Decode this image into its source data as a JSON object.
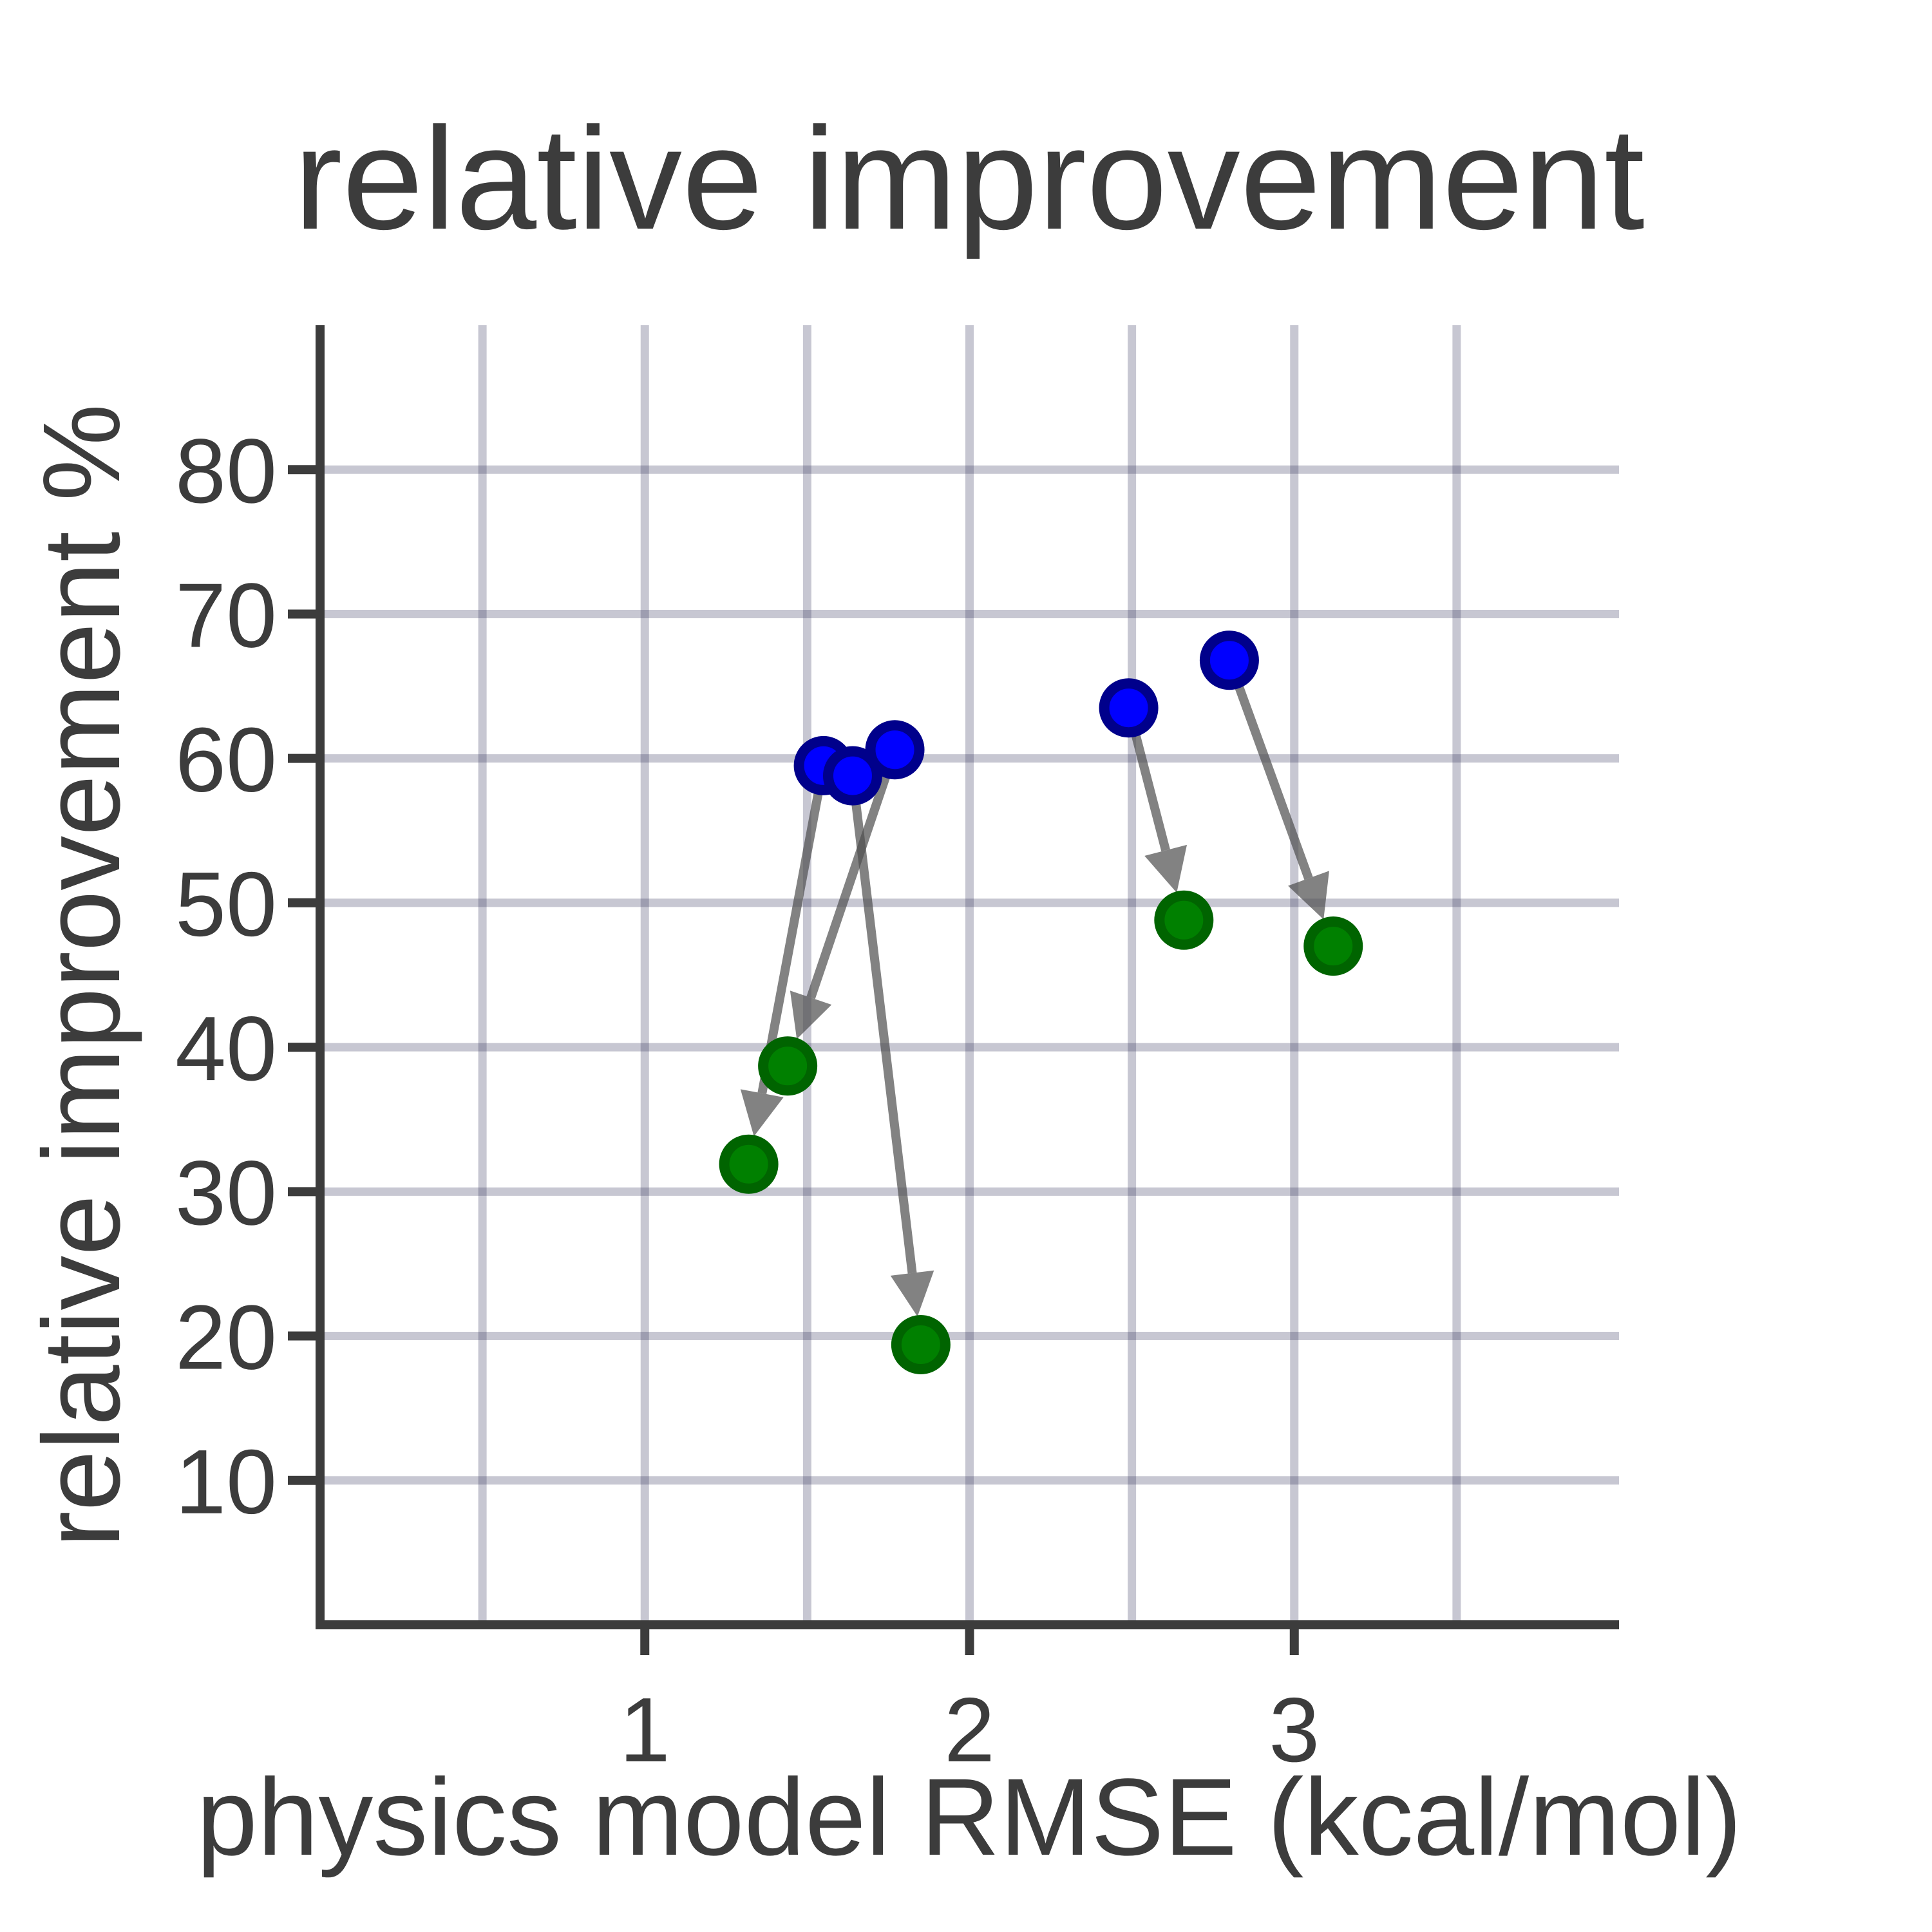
{
  "chart_data": {
    "type": "scatter",
    "title": "relative improvement",
    "xlabel": "physics model RMSE (kcal/mol)",
    "ylabel": "relative improvement %",
    "xlim": [
      0.0,
      4.0
    ],
    "ylim": [
      0,
      90
    ],
    "x_ticks": [
      1,
      2,
      3
    ],
    "x_tick_labels": [
      "1",
      "2",
      "3"
    ],
    "x_grid": [
      0.5,
      1.0,
      1.5,
      2.0,
      2.5,
      3.0,
      3.5
    ],
    "y_ticks": [
      10,
      20,
      30,
      40,
      50,
      60,
      70,
      80
    ],
    "y_tick_labels": [
      "10",
      "20",
      "30",
      "40",
      "50",
      "60",
      "70",
      "80"
    ],
    "grid": true,
    "legend": null,
    "colors": {
      "start": "#0000ff",
      "start_edge": "#00008b",
      "end": "#008000",
      "end_edge": "#006400",
      "arrow": "#4d4d4d"
    },
    "series": [
      {
        "marker": "start",
        "points": [
          [
            1.55,
            59.5
          ],
          [
            1.64,
            58.8
          ],
          [
            1.77,
            60.6
          ],
          [
            2.49,
            63.5
          ],
          [
            2.8,
            66.8
          ]
        ]
      },
      {
        "marker": "end",
        "points": [
          [
            1.32,
            31.9
          ],
          [
            1.44,
            38.7
          ],
          [
            1.85,
            19.4
          ],
          [
            2.66,
            48.8
          ],
          [
            3.12,
            47.0
          ]
        ]
      }
    ],
    "arrows": [
      {
        "from": [
          1.55,
          59.5
        ],
        "to": [
          1.32,
          31.9
        ]
      },
      {
        "from": [
          1.64,
          58.8
        ],
        "to": [
          1.85,
          19.4
        ]
      },
      {
        "from": [
          1.77,
          60.6
        ],
        "to": [
          1.44,
          38.7
        ]
      },
      {
        "from": [
          2.49,
          63.5
        ],
        "to": [
          2.66,
          48.8
        ]
      },
      {
        "from": [
          2.8,
          66.8
        ],
        "to": [
          3.12,
          47.0
        ]
      }
    ]
  }
}
